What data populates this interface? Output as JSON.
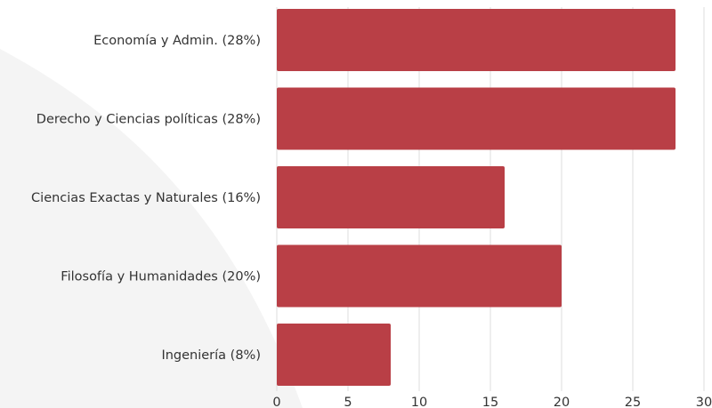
{
  "chart_data": {
    "type": "bar",
    "orientation": "horizontal",
    "categories": [
      "Economía y Admin. (28%)",
      "Derecho y Ciencias políticas (28%)",
      "Ciencias Exactas y Naturales (16%)",
      "Filosofía y Humanidades (20%)",
      "Ingeniería (8%)"
    ],
    "values": [
      28,
      28,
      16,
      20,
      8
    ],
    "xlim": [
      0,
      30
    ],
    "xticks": [
      "0",
      "5",
      "10",
      "15",
      "20",
      "25",
      "30"
    ],
    "grid": "vertical",
    "bar_color": "#b93f46",
    "title": "",
    "xlabel": "",
    "ylabel": ""
  }
}
